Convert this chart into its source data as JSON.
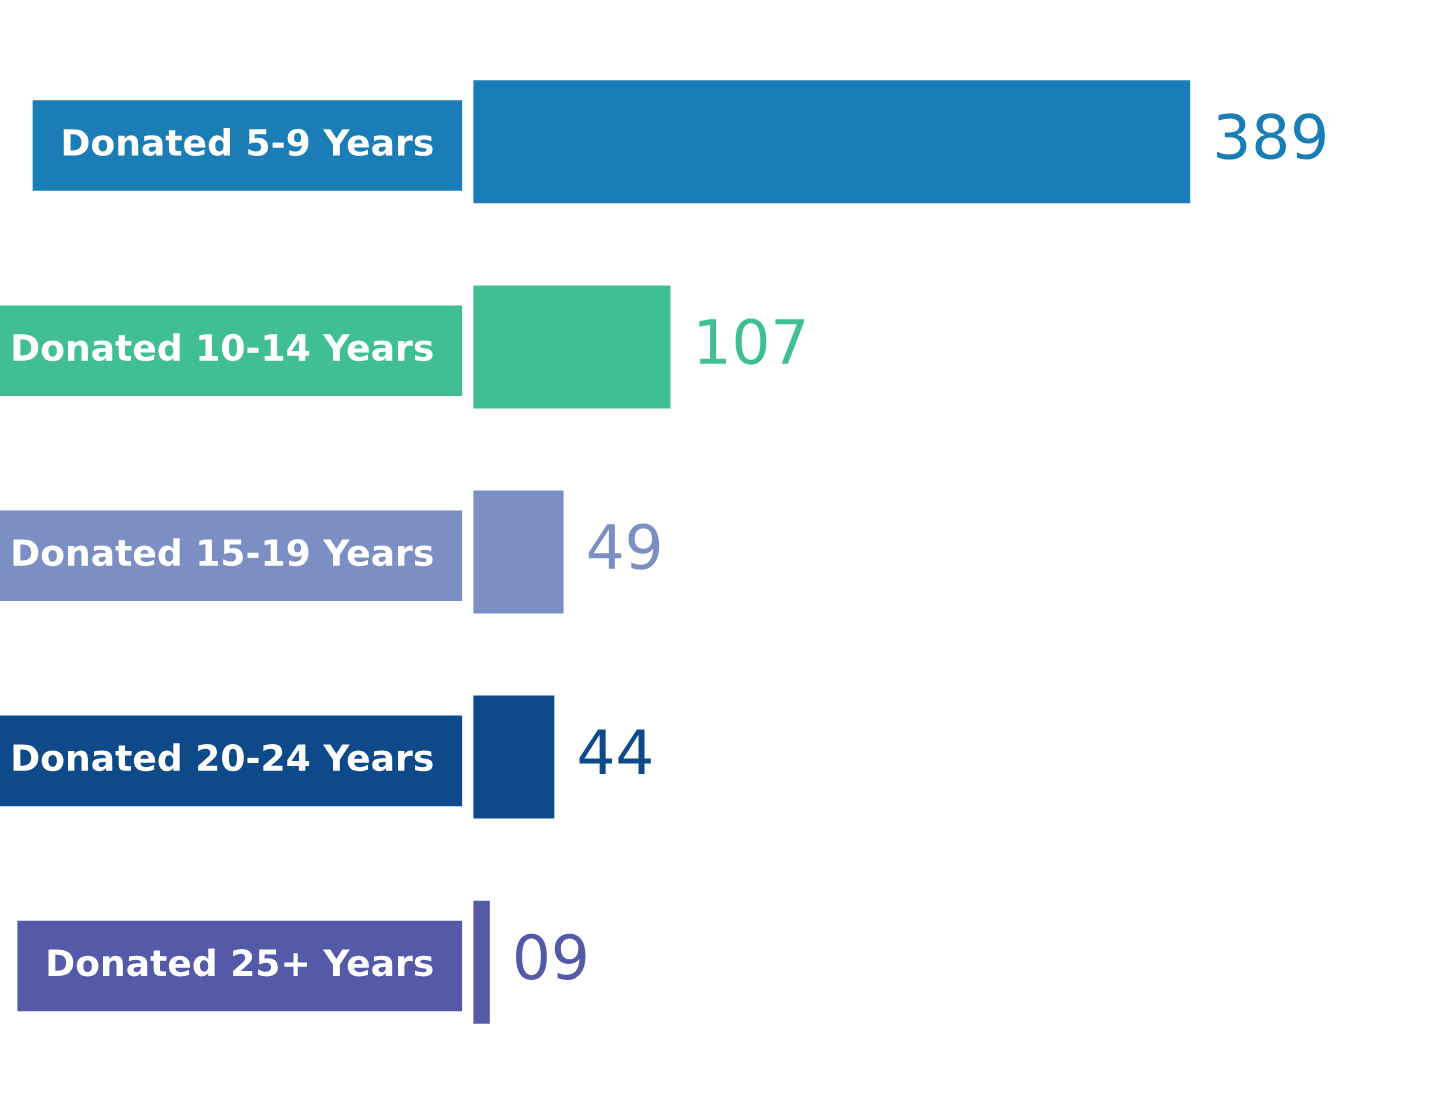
{
  "chart_data": {
    "type": "bar",
    "orientation": "horizontal",
    "categories": [
      "Donated 5-9 Years",
      "Donated 10-14 Years",
      "Donated 15-19 Years",
      "Donated 20-24 Years",
      "Donated 25+ Years"
    ],
    "values": [
      389,
      107,
      49,
      44,
      9
    ],
    "value_labels": [
      "389",
      "107",
      "49",
      "44",
      "09"
    ],
    "colors": [
      "#1a7db5",
      "#40bf94",
      "#7b8fc4",
      "#0e4a8a",
      "#5459a8"
    ],
    "tick_labels": "y",
    "grid": false,
    "legend": false
  }
}
